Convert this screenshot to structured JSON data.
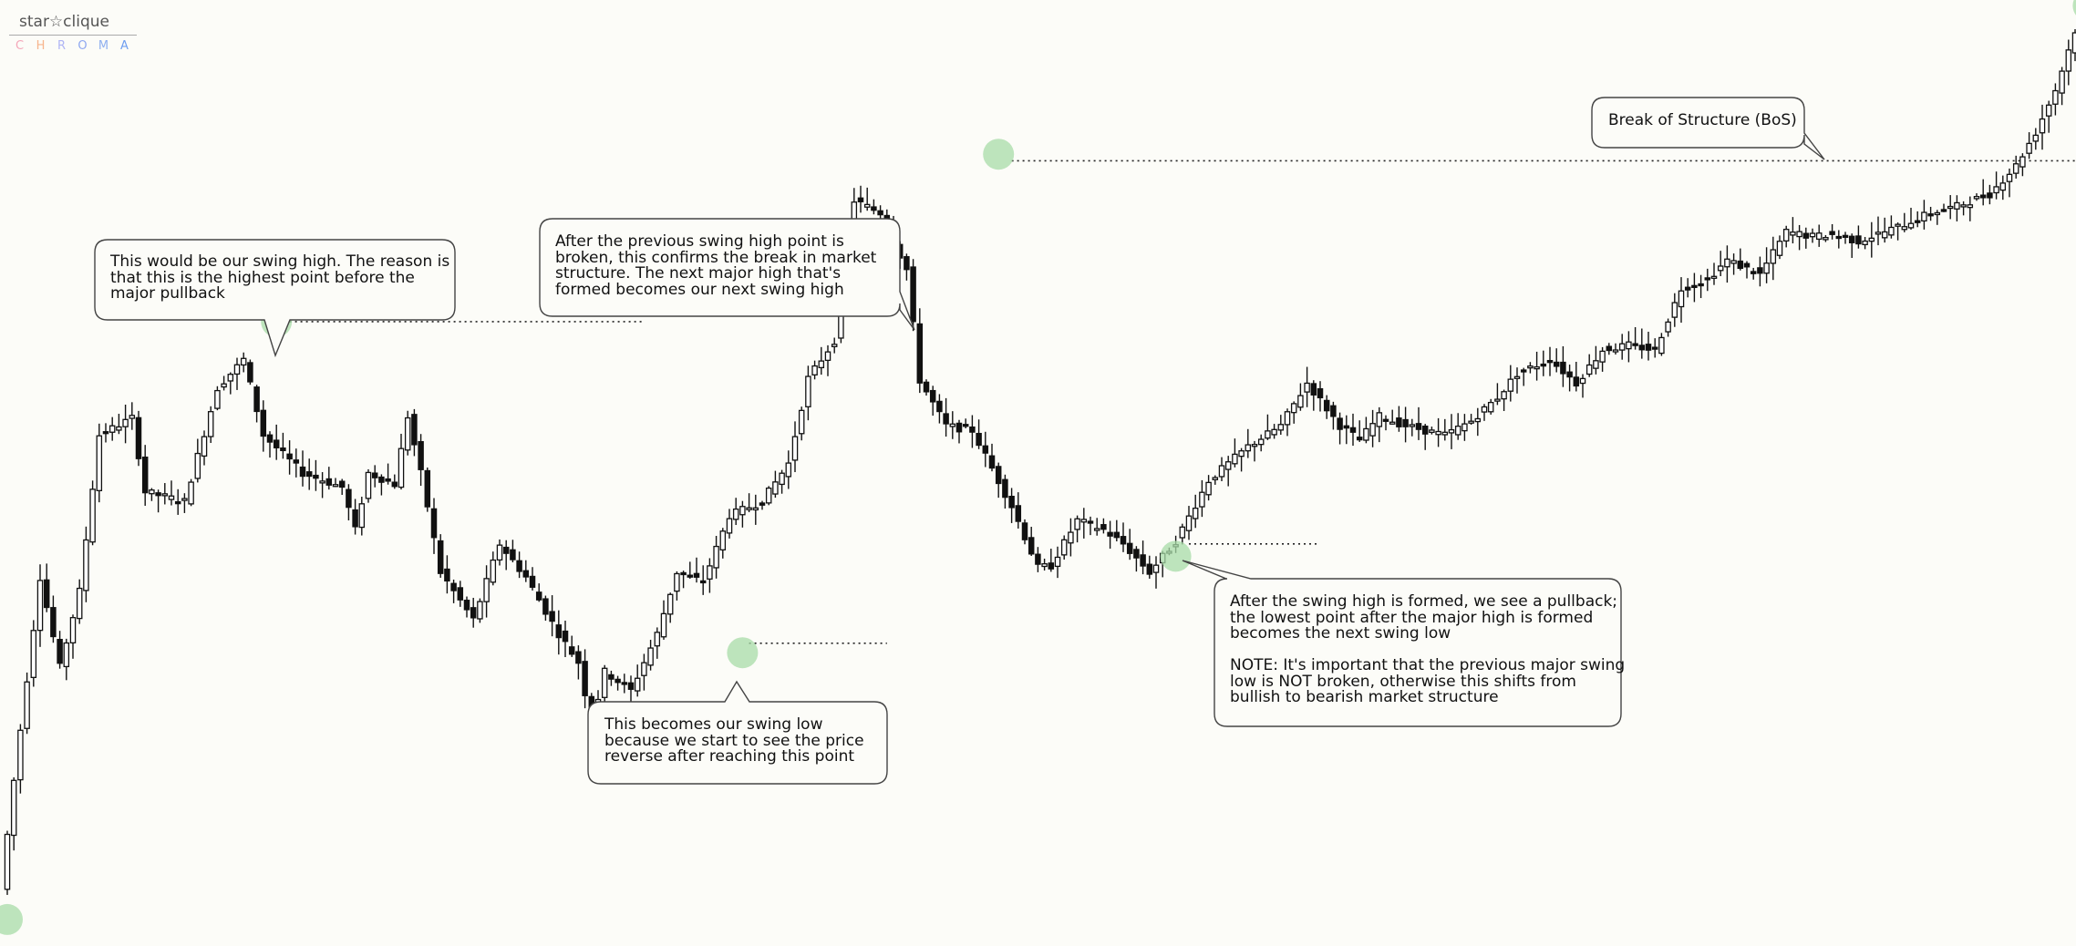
{
  "logo": {
    "name": "star☆clique",
    "sub_letters": [
      "C",
      "H",
      "R",
      "O",
      "M",
      "A"
    ],
    "sub_colors": [
      "#f4a7b9",
      "#f7b58d",
      "#b0b5f5",
      "#8fa8f0",
      "#8fb0f0",
      "#6f9ef0"
    ]
  },
  "callouts": {
    "swing_high": "This would be our swing high. The reason is\nthat this is the highest point before the\nmajor pullback",
    "next_swing_high": "After the previous swing high point is\nbroken, this confirms the break in market\nstructure. The next major high that's\nformed becomes our next swing high",
    "swing_low": "This becomes our swing low\nbecause we start to see the price\nreverse after reaching this point",
    "next_swing_low": "After the swing high is formed, we see a pullback;\nthe lowest point after the major high is formed\nbecomes the next swing low\n\nNOTE: It's important that the previous major swing\nlow is NOT broken, otherwise this shifts from\nbullish to bearish market structure",
    "bos": "Break of Structure (BoS)"
  },
  "colors": {
    "background": "#fcfcf8",
    "candle": "#111111",
    "marker": "#a8dca8"
  },
  "chart_data": {
    "type": "candlestick",
    "title": "",
    "xlabel": "",
    "ylabel": "",
    "ylim": [
      0,
      1000
    ],
    "waypoints": [
      [
        0,
        60
      ],
      [
        2,
        175
      ],
      [
        6,
        390
      ],
      [
        9,
        295
      ],
      [
        12,
        375
      ],
      [
        15,
        540
      ],
      [
        20,
        558
      ],
      [
        22,
        480
      ],
      [
        28,
        470
      ],
      [
        33,
        590
      ],
      [
        37,
        620
      ],
      [
        40,
        540
      ],
      [
        46,
        500
      ],
      [
        52,
        485
      ],
      [
        54,
        440
      ],
      [
        56,
        500
      ],
      [
        60,
        488
      ],
      [
        62,
        560
      ],
      [
        64,
        500
      ],
      [
        67,
        395
      ],
      [
        72,
        345
      ],
      [
        76,
        425
      ],
      [
        80,
        390
      ],
      [
        85,
        330
      ],
      [
        88,
        300
      ],
      [
        90,
        235
      ],
      [
        92,
        290
      ],
      [
        96,
        270
      ],
      [
        100,
        330
      ],
      [
        103,
        395
      ],
      [
        107,
        385
      ],
      [
        111,
        455
      ],
      [
        116,
        470
      ],
      [
        120,
        510
      ],
      [
        123,
        600
      ],
      [
        127,
        640
      ],
      [
        130,
        788
      ],
      [
        134,
        775
      ],
      [
        138,
        715
      ],
      [
        140,
        598
      ],
      [
        144,
        550
      ],
      [
        148,
        545
      ],
      [
        151,
        505
      ],
      [
        154,
        465
      ],
      [
        158,
        400
      ],
      [
        160,
        402
      ],
      [
        164,
        450
      ],
      [
        168,
        440
      ],
      [
        171,
        425
      ],
      [
        175,
        395
      ],
      [
        179,
        428
      ],
      [
        184,
        492
      ],
      [
        190,
        528
      ],
      [
        195,
        550
      ],
      [
        199,
        595
      ],
      [
        204,
        550
      ],
      [
        207,
        535
      ],
      [
        210,
        560
      ],
      [
        214,
        550
      ],
      [
        220,
        540
      ],
      [
        224,
        555
      ],
      [
        228,
        580
      ],
      [
        231,
        605
      ],
      [
        236,
        620
      ],
      [
        240,
        595
      ],
      [
        244,
        630
      ],
      [
        248,
        635
      ],
      [
        252,
        630
      ],
      [
        256,
        695
      ],
      [
        260,
        705
      ],
      [
        263,
        725
      ],
      [
        268,
        710
      ],
      [
        272,
        755
      ],
      [
        276,
        750
      ],
      [
        279,
        752
      ],
      [
        283,
        745
      ],
      [
        289,
        760
      ],
      [
        294,
        775
      ],
      [
        298,
        782
      ],
      [
        303,
        795
      ],
      [
        307,
        825
      ],
      [
        310,
        860
      ],
      [
        313,
        905
      ],
      [
        316,
        968
      ]
    ],
    "swing_high_1": 660,
    "swing_low_1": 320,
    "swing_high_2": 830,
    "swing_low_2": 425,
    "markers": [
      {
        "name": "start-low-marker",
        "x": 0,
        "y": 28
      },
      {
        "name": "swing-high-marker",
        "x": 41,
        "y": 660
      },
      {
        "name": "swing-low-marker",
        "x": 112,
        "y": 310
      },
      {
        "name": "next-swing-high-marker",
        "x": 151,
        "y": 837
      },
      {
        "name": "next-swing-low-marker",
        "x": 178,
        "y": 412
      },
      {
        "name": "bos-marker",
        "x": 317,
        "y": 994
      }
    ]
  }
}
